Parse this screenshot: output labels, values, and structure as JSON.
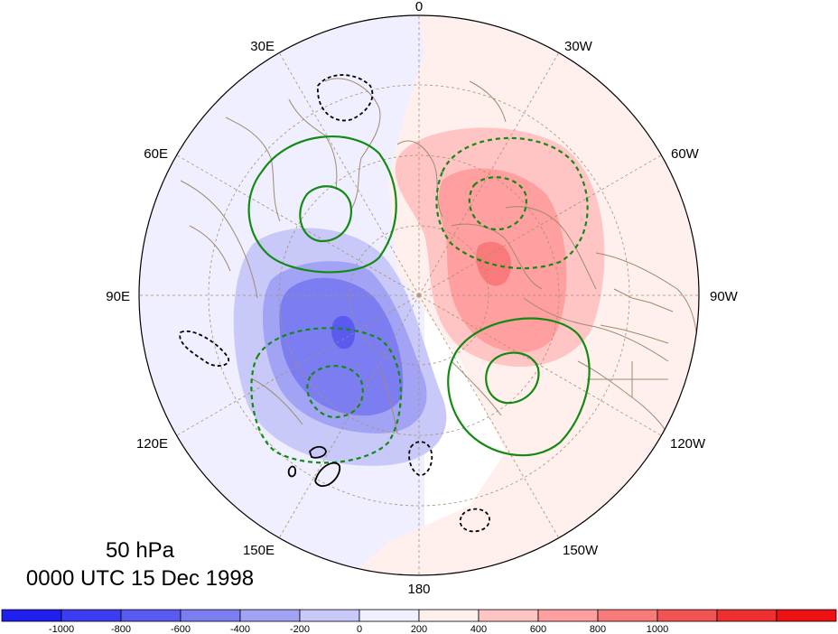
{
  "map": {
    "projection": "polar stereographic (north)",
    "longitude_labels": [
      "0",
      "30W",
      "60W",
      "90W",
      "120W",
      "150W",
      "180",
      "150E",
      "120E",
      "90E",
      "60E",
      "30E"
    ],
    "title_line1": "50 hPa",
    "title_line2": "0000 UTC 15 Dec 1998",
    "colorbar": {
      "tick_labels": [
        "-1000",
        "-800",
        "-600",
        "-400",
        "-200",
        "0",
        "200",
        "400",
        "600",
        "800",
        "1000"
      ],
      "levels": [
        -1000,
        -800,
        -600,
        -400,
        -200,
        0,
        200,
        400,
        600,
        800,
        1000
      ],
      "colors": [
        "#1f1fee",
        "#3c3cf3",
        "#5a5af0",
        "#7d7df2",
        "#a3a3f6",
        "#c8c8f9",
        "#efefff",
        "#fff0ee",
        "#ffc4c4",
        "#ff9f9f",
        "#f97a7a",
        "#f25454",
        "#ef2f2f",
        "#ee1111"
      ]
    },
    "colors": {
      "coastline": "#a08b72",
      "graticule": "#a89070",
      "positive_contour": "#138a13",
      "negative_contour": "#000000"
    }
  }
}
